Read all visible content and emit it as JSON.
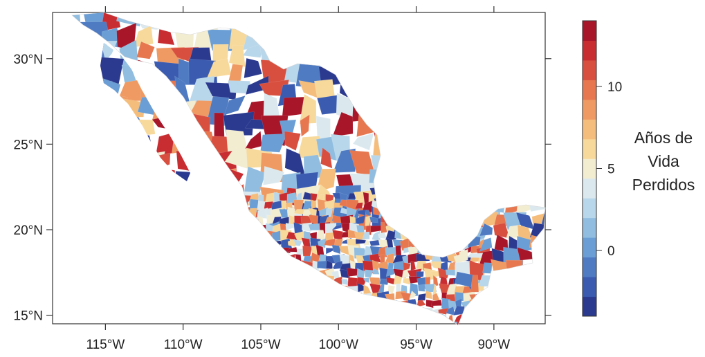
{
  "map": {
    "x_ticks": [
      "115°W",
      "110°W",
      "105°W",
      "100°W",
      "95°W",
      "90°W"
    ],
    "y_ticks": [
      "30°N",
      "25°N",
      "20°N",
      "15°N"
    ],
    "longitudes": [
      -115,
      -110,
      -105,
      -100,
      -95,
      -90
    ],
    "latitudes": [
      30,
      25,
      20,
      15
    ],
    "lon_range": [
      -118.4,
      -86.7
    ],
    "lat_range": [
      14.5,
      32.7
    ]
  },
  "legend": {
    "title_lines": [
      "Años de",
      "Vida",
      "Perdidos"
    ],
    "tick_labels": [
      "10",
      "5",
      "0"
    ],
    "tick_values": [
      10,
      5,
      0
    ],
    "range": [
      -4,
      14
    ],
    "colors": [
      "#2b3a8f",
      "#3a5bb0",
      "#4f7bc3",
      "#6a9ed4",
      "#90bde0",
      "#b9d7ea",
      "#dbe9ef",
      "#f2ecd0",
      "#f7d99b",
      "#f5bd7b",
      "#ef9a62",
      "#e6774f",
      "#d84f3f",
      "#c72d31",
      "#a8162a"
    ]
  }
}
